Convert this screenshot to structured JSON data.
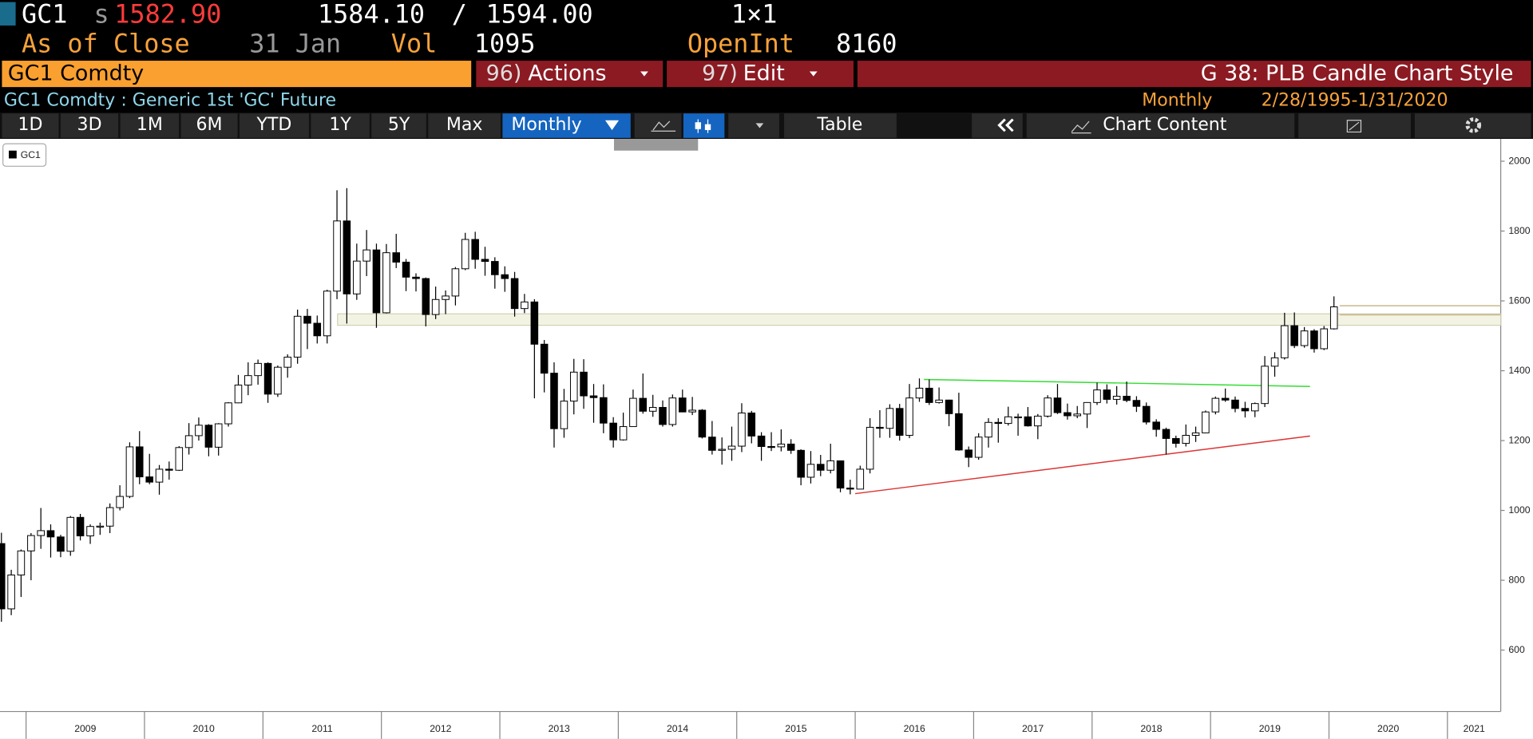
{
  "terminal": {
    "ticker": "GC1",
    "source": "s",
    "last": "1582.90",
    "bid": "1584.10",
    "sep": "/",
    "ask": "1594.00",
    "layout": "1×1",
    "as_of": "As of Close",
    "date": "31 Jan",
    "vol_label": "Vol",
    "vol": "1095",
    "oi_label": "OpenInt",
    "oi": "8160",
    "security": "GC1 Comdty",
    "actions_num": "96)",
    "actions": "Actions",
    "edit_num": "97)",
    "edit": "Edit",
    "function": "G 38: PLB Candle Chart Style",
    "description": "GC1 Comdty : Generic 1st 'GC' Future",
    "period": "Monthly",
    "range": "2/28/1995-1/31/2020",
    "toolbar": [
      "1D",
      "3D",
      "1M",
      "6M",
      "YTD",
      "1Y",
      "5Y",
      "Max"
    ],
    "frequency": "Monthly",
    "table": "Table",
    "chart_content": "Chart Content"
  },
  "chart_data": {
    "type": "candlestick",
    "series": [
      {
        "name": "GC1",
        "up_color": "#ffffff",
        "down_color": "#000000",
        "x": [
          2008.792,
          2008.875,
          2008.958,
          2009.042,
          2009.125,
          2009.208,
          2009.292,
          2009.375,
          2009.458,
          2009.542,
          2009.625,
          2009.708,
          2009.792,
          2009.875,
          2009.958,
          2010.042,
          2010.125,
          2010.208,
          2010.292,
          2010.375,
          2010.458,
          2010.542,
          2010.625,
          2010.708,
          2010.792,
          2010.875,
          2010.958,
          2011.042,
          2011.125,
          2011.208,
          2011.292,
          2011.375,
          2011.458,
          2011.542,
          2011.625,
          2011.708,
          2011.792,
          2011.875,
          2011.958,
          2012.042,
          2012.125,
          2012.208,
          2012.292,
          2012.375,
          2012.458,
          2012.542,
          2012.625,
          2012.708,
          2012.792,
          2012.875,
          2012.958,
          2013.042,
          2013.125,
          2013.208,
          2013.292,
          2013.375,
          2013.458,
          2013.542,
          2013.625,
          2013.708,
          2013.792,
          2013.875,
          2013.958,
          2014.042,
          2014.125,
          2014.208,
          2014.292,
          2014.375,
          2014.458,
          2014.542,
          2014.625,
          2014.708,
          2014.792,
          2014.875,
          2014.958,
          2015.042,
          2015.125,
          2015.208,
          2015.292,
          2015.375,
          2015.458,
          2015.542,
          2015.625,
          2015.708,
          2015.792,
          2015.875,
          2015.958,
          2016.042,
          2016.125,
          2016.208,
          2016.292,
          2016.375,
          2016.458,
          2016.542,
          2016.625,
          2016.708,
          2016.792,
          2016.875,
          2016.958,
          2017.042,
          2017.125,
          2017.208,
          2017.292,
          2017.375,
          2017.458,
          2017.542,
          2017.625,
          2017.708,
          2017.792,
          2017.875,
          2017.958,
          2018.042,
          2018.125,
          2018.208,
          2018.292,
          2018.375,
          2018.458,
          2018.542,
          2018.625,
          2018.708,
          2018.792,
          2018.875,
          2018.958,
          2019.042,
          2019.125,
          2019.208,
          2019.292,
          2019.375,
          2019.458,
          2019.542,
          2019.625,
          2019.708,
          2019.792,
          2019.875,
          2019.958,
          2020.042
        ],
        "open": [
          905,
          718,
          815,
          884,
          928,
          942,
          924,
          883,
          980,
          927,
          954,
          955,
          1008,
          1040,
          1182,
          1096,
          1081,
          1118,
          1115,
          1180,
          1214,
          1244,
          1181,
          1248,
          1308,
          1359,
          1386,
          1421,
          1333,
          1410,
          1439,
          1556,
          1536,
          1500,
          1628,
          1829,
          1620,
          1714,
          1746,
          1566,
          1738,
          1711,
          1668,
          1664,
          1561,
          1604,
          1614,
          1692,
          1776,
          1719,
          1713,
          1675,
          1664,
          1578,
          1597,
          1476,
          1393,
          1234,
          1313,
          1396,
          1328,
          1323,
          1250,
          1202,
          1240,
          1321,
          1284,
          1295,
          1246,
          1322,
          1282,
          1287,
          1210,
          1172,
          1175,
          1184,
          1279,
          1213,
          1183,
          1182,
          1190,
          1172,
          1095,
          1132,
          1115,
          1142,
          1064,
          1061,
          1118,
          1238,
          1235,
          1292,
          1215,
          1322,
          1350,
          1309,
          1316,
          1277,
          1173,
          1152,
          1210,
          1252,
          1249,
          1268,
          1268,
          1242,
          1270,
          1322,
          1280,
          1271,
          1276,
          1309,
          1345,
          1318,
          1327,
          1315,
          1298,
          1253,
          1232,
          1206,
          1192,
          1215,
          1222,
          1282,
          1321,
          1316,
          1292,
          1285,
          1306,
          1413,
          1437,
          1529,
          1472,
          1514,
          1463,
          1520
        ],
        "high": [
          936,
          830,
          888,
          935,
          1007,
          960,
          930,
          984,
          990,
          960,
          965,
          1020,
          1072,
          1195,
          1227,
          1162,
          1130,
          1140,
          1184,
          1250,
          1266,
          1247,
          1250,
          1310,
          1388,
          1424,
          1432,
          1424,
          1415,
          1447,
          1575,
          1577,
          1558,
          1632,
          1917,
          1923,
          1764,
          1803,
          1764,
          1763,
          1792,
          1720,
          1679,
          1667,
          1641,
          1630,
          1697,
          1795,
          1798,
          1755,
          1725,
          1699,
          1683,
          1620,
          1605,
          1488,
          1424,
          1348,
          1434,
          1433,
          1362,
          1361,
          1267,
          1280,
          1346,
          1392,
          1331,
          1315,
          1332,
          1346,
          1325,
          1290,
          1256,
          1209,
          1240,
          1307,
          1285,
          1224,
          1224,
          1232,
          1204,
          1175,
          1170,
          1159,
          1191,
          1143,
          1088,
          1128,
          1264,
          1287,
          1304,
          1305,
          1362,
          1378,
          1375,
          1352,
          1317,
          1337,
          1183,
          1221,
          1264,
          1264,
          1297,
          1277,
          1296,
          1276,
          1330,
          1362,
          1306,
          1299,
          1310,
          1366,
          1361,
          1356,
          1369,
          1327,
          1309,
          1261,
          1237,
          1214,
          1246,
          1240,
          1286,
          1326,
          1349,
          1326,
          1311,
          1309,
          1442,
          1453,
          1566,
          1567,
          1525,
          1519,
          1528,
          1613
        ],
        "low": [
          681,
          700,
          752,
          800,
          890,
          865,
          866,
          870,
          914,
          904,
          930,
          935,
          1000,
          1035,
          1075,
          1075,
          1045,
          1088,
          1113,
          1160,
          1200,
          1155,
          1157,
          1240,
          1307,
          1330,
          1360,
          1308,
          1325,
          1380,
          1420,
          1462,
          1478,
          1478,
          1605,
          1535,
          1603,
          1671,
          1523,
          1564,
          1694,
          1628,
          1627,
          1527,
          1548,
          1562,
          1587,
          1688,
          1692,
          1672,
          1635,
          1626,
          1555,
          1565,
          1321,
          1338,
          1180,
          1208,
          1275,
          1291,
          1251,
          1221,
          1180,
          1200,
          1239,
          1277,
          1268,
          1240,
          1240,
          1281,
          1273,
          1206,
          1160,
          1131,
          1142,
          1167,
          1192,
          1142,
          1170,
          1169,
          1162,
          1072,
          1077,
          1098,
          1106,
          1052,
          1046,
          1062,
          1106,
          1208,
          1208,
          1200,
          1207,
          1311,
          1302,
          1306,
          1241,
          1171,
          1124,
          1145,
          1180,
          1194,
          1243,
          1214,
          1240,
          1204,
          1266,
          1276,
          1260,
          1264,
          1236,
          1302,
          1306,
          1303,
          1310,
          1282,
          1246,
          1211,
          1160,
          1180,
          1183,
          1196,
          1221,
          1275,
          1311,
          1281,
          1266,
          1267,
          1296,
          1383,
          1432,
          1465,
          1466,
          1452,
          1459,
          1518
        ],
        "close": [
          718,
          815,
          884,
          928,
          942,
          924,
          883,
          980,
          927,
          954,
          955,
          1008,
          1040,
          1182,
          1096,
          1081,
          1118,
          1115,
          1180,
          1214,
          1244,
          1181,
          1248,
          1308,
          1359,
          1386,
          1421,
          1333,
          1410,
          1439,
          1556,
          1536,
          1500,
          1628,
          1829,
          1620,
          1714,
          1746,
          1566,
          1738,
          1711,
          1668,
          1664,
          1561,
          1604,
          1614,
          1692,
          1776,
          1719,
          1713,
          1675,
          1664,
          1578,
          1597,
          1476,
          1393,
          1234,
          1313,
          1396,
          1328,
          1323,
          1250,
          1202,
          1240,
          1321,
          1284,
          1295,
          1246,
          1322,
          1282,
          1287,
          1210,
          1172,
          1175,
          1184,
          1279,
          1213,
          1183,
          1182,
          1190,
          1172,
          1095,
          1132,
          1115,
          1142,
          1064,
          1061,
          1118,
          1238,
          1235,
          1292,
          1215,
          1322,
          1350,
          1309,
          1316,
          1277,
          1173,
          1152,
          1210,
          1252,
          1249,
          1268,
          1268,
          1242,
          1270,
          1322,
          1280,
          1271,
          1276,
          1309,
          1345,
          1318,
          1327,
          1315,
          1298,
          1253,
          1232,
          1206,
          1192,
          1215,
          1222,
          1282,
          1321,
          1316,
          1292,
          1285,
          1306,
          1413,
          1437,
          1529,
          1472,
          1514,
          1463,
          1520,
          1582.9
        ]
      }
    ],
    "xlim": [
      2008.78,
      2021.45
    ],
    "xticks": [
      {
        "value": 2009,
        "label": "2009"
      },
      {
        "value": 2010,
        "label": "2010"
      },
      {
        "value": 2011,
        "label": "2011"
      },
      {
        "value": 2012,
        "label": "2012"
      },
      {
        "value": 2013,
        "label": "2013"
      },
      {
        "value": 2014,
        "label": "2014"
      },
      {
        "value": 2015,
        "label": "2015"
      },
      {
        "value": 2016,
        "label": "2016"
      },
      {
        "value": 2017,
        "label": "2017"
      },
      {
        "value": 2018,
        "label": "2018"
      },
      {
        "value": 2019,
        "label": "2019"
      },
      {
        "value": 2020,
        "label": "2020"
      },
      {
        "value": 2021,
        "label": "2021"
      }
    ],
    "ylim": [
      424,
      2064
    ],
    "yticks": [
      600,
      800,
      1000,
      1200,
      1400,
      1600,
      1800,
      2000
    ],
    "zones": [
      {
        "color": "#f3f3e4",
        "x": [
          2011.63,
          2021.45
        ],
        "y": [
          1530,
          1563
        ]
      }
    ],
    "trendlines": [
      {
        "color": "#33dd33",
        "x": [
          2016.58,
          2019.84
        ],
        "y": [
          1375,
          1355
        ]
      },
      {
        "color": "#dd3333",
        "x": [
          2016.0,
          2019.84
        ],
        "y": [
          1048,
          1213
        ]
      },
      {
        "color": "#c8b98a",
        "x": [
          2020.09,
          2021.45
        ],
        "y": [
          1586,
          1586
        ]
      },
      {
        "color": "#c8b98a",
        "x": [
          2020.09,
          2021.45
        ],
        "y": [
          1560,
          1560
        ]
      }
    ]
  }
}
